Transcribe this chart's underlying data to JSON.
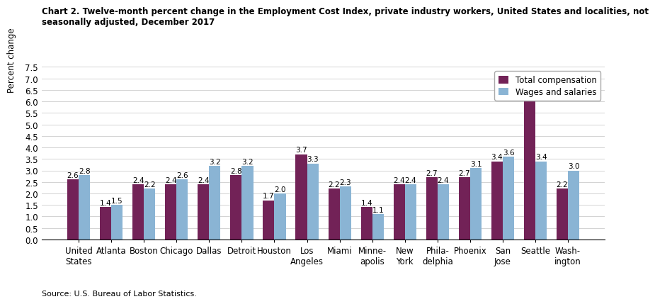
{
  "title_line1": "Chart 2. Twelve-month percent change in the Employment Cost Index, private industry workers, United States and localities, not",
  "title_line2": "seasonally adjusted, December 2017",
  "ylabel": "Percent change",
  "source": "Source: U.S. Bureau of Labor Statistics.",
  "categories": [
    "United\nStates",
    "Atlanta",
    "Boston",
    "Chicago",
    "Dallas",
    "Detroit",
    "Houston",
    "Los\nAngeles",
    "Miami",
    "Minne-\napolis",
    "New\nYork",
    "Phila-\ndelphia",
    "Phoenix",
    "San\nJose",
    "Seattle",
    "Wash-\nington"
  ],
  "total_compensation": [
    2.6,
    1.4,
    2.4,
    2.4,
    2.4,
    2.8,
    1.7,
    3.7,
    2.2,
    1.4,
    2.4,
    2.7,
    2.7,
    3.4,
    6.9,
    2.2
  ],
  "wages_salaries": [
    2.8,
    1.5,
    2.2,
    2.6,
    3.2,
    3.2,
    2.0,
    3.3,
    2.3,
    1.1,
    2.4,
    2.4,
    3.1,
    3.6,
    3.4,
    3.0
  ],
  "color_total": "#722257",
  "color_wages": "#8ab4d4",
  "ylim": [
    0,
    7.5
  ],
  "yticks": [
    0.0,
    0.5,
    1.0,
    1.5,
    2.0,
    2.5,
    3.0,
    3.5,
    4.0,
    4.5,
    5.0,
    5.5,
    6.0,
    6.5,
    7.0,
    7.5
  ],
  "legend_labels": [
    "Total compensation",
    "Wages and salaries"
  ],
  "bar_width": 0.35,
  "label_fontsize": 7.5,
  "title_fontsize": 8.5,
  "axis_fontsize": 8.5,
  "tick_fontsize": 8.5,
  "source_fontsize": 8.0
}
